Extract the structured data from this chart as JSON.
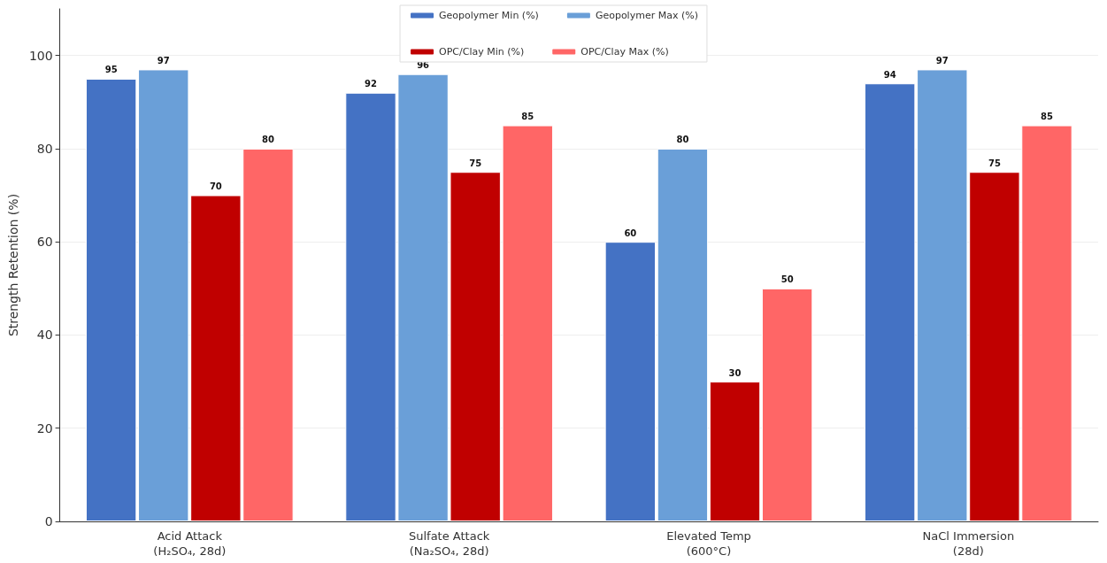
{
  "chart_data": {
    "type": "bar",
    "ylabel": "Strength Retention (%)",
    "categories": [
      "Acid Attack\n(H₂SO₄, 28d)",
      "Sulfate Attack\n(Na₂SO₄, 28d)",
      "Elevated Temp\n(600°C)",
      "NaCl Immersion\n(28d)"
    ],
    "series": [
      {
        "name": "Geopolymer Min (%)",
        "color": "#4472c4",
        "values": [
          95,
          92,
          60,
          94
        ]
      },
      {
        "name": "Geopolymer Max (%)",
        "color": "#6a9fd8",
        "values": [
          97,
          96,
          80,
          97
        ]
      },
      {
        "name": "OPC/Clay Min (%)",
        "color": "#c00000",
        "values": [
          70,
          75,
          30,
          75
        ]
      },
      {
        "name": "OPC/Clay Max (%)",
        "color": "#ff6666",
        "values": [
          80,
          85,
          50,
          85
        ]
      }
    ],
    "ylim": [
      0,
      110
    ],
    "yticks": [
      0,
      20,
      40,
      60,
      80,
      100
    ],
    "grid": "y",
    "legend": "top",
    "data_labels": true
  }
}
